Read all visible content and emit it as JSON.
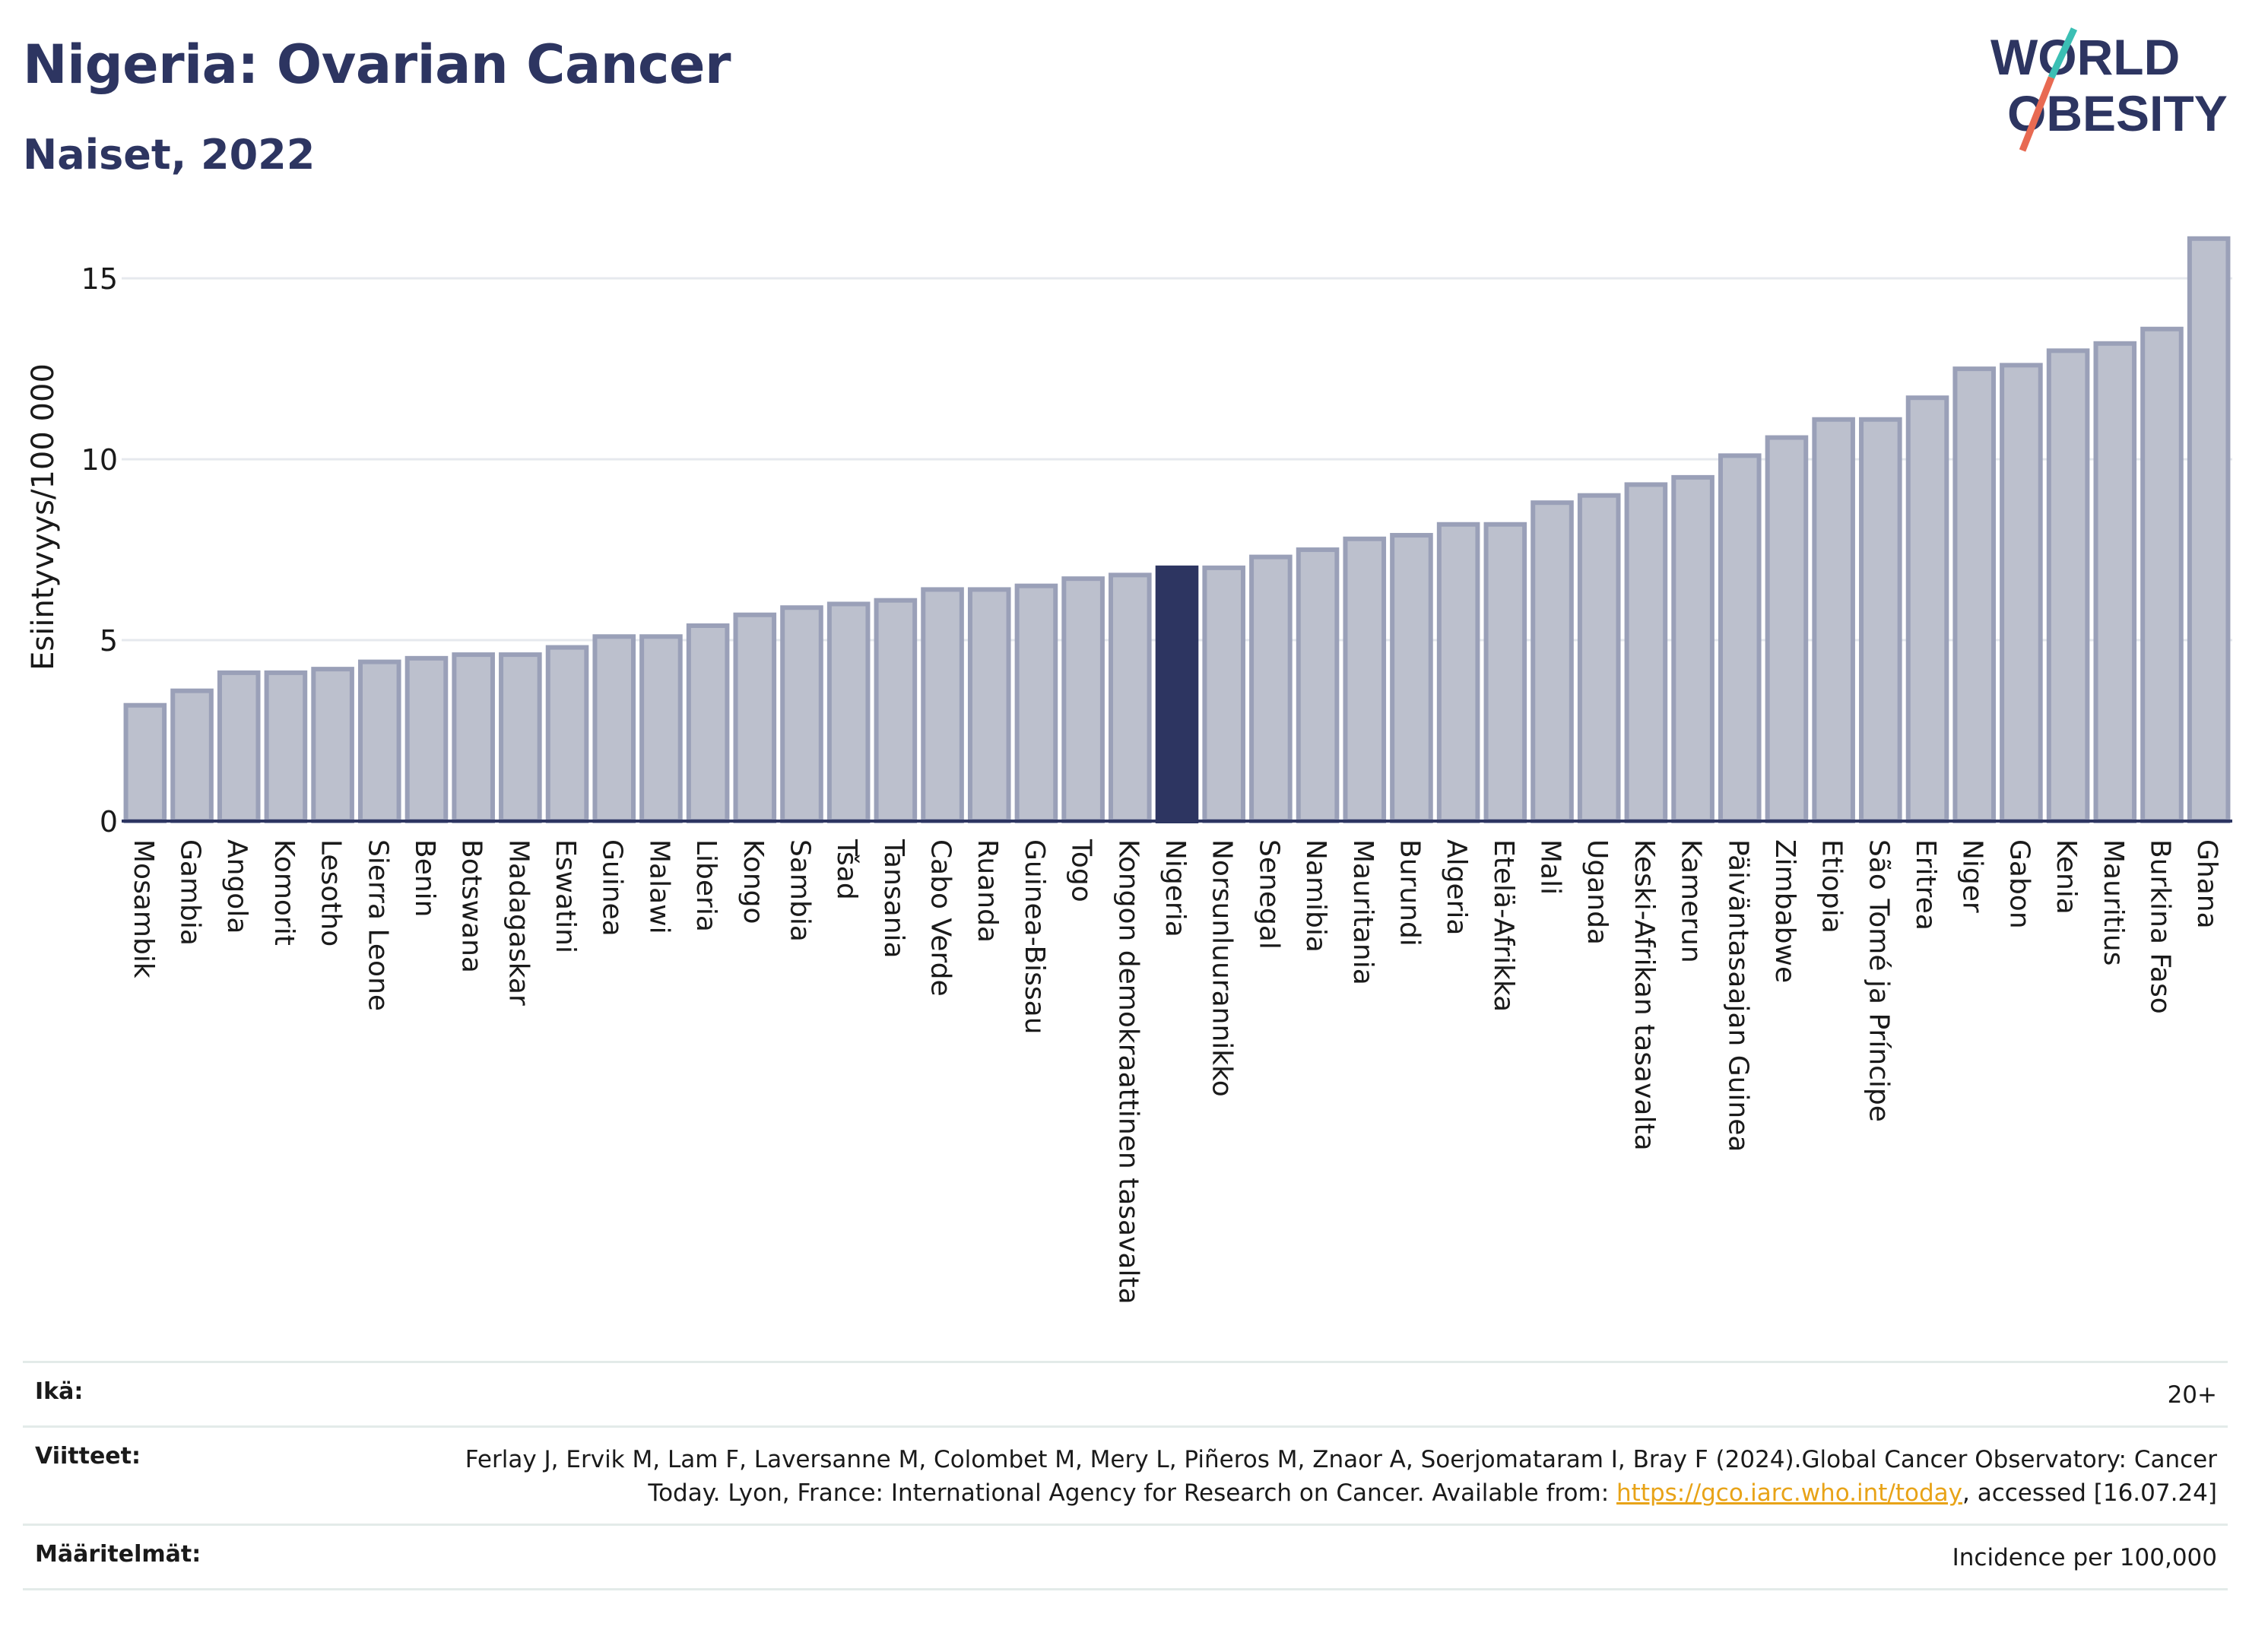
{
  "title": "Nigeria: Ovarian Cancer",
  "subtitle": "Naiset, 2022",
  "logo": {
    "line1": "WORLD",
    "line2": "OBESITY"
  },
  "colors": {
    "highlight": "#2d3561",
    "bar": "#bcc0cd",
    "bar_stroke": "#9aa0b8",
    "text": "#2d3561",
    "link": "#e8a317"
  },
  "chart_data": {
    "type": "bar",
    "ylabel": "Esiintyvyys/100 000",
    "xlabel": "",
    "ylim": [
      0,
      16.6
    ],
    "yticks": [
      0,
      5,
      10,
      15
    ],
    "grid": true,
    "highlight": "Nigeria",
    "categories": [
      "Mosambik",
      "Gambia",
      "Angola",
      "Komorit",
      "Lesotho",
      "Sierra Leone",
      "Benin",
      "Botswana",
      "Madagaskar",
      "Eswatini",
      "Guinea",
      "Malawi",
      "Liberia",
      "Kongo",
      "Sambia",
      "Tšad",
      "Tansania",
      "Cabo Verde",
      "Ruanda",
      "Guinea-Bissau",
      "Togo",
      "Kongon demokraattinen tasavalta",
      "Nigeria",
      "Norsunluurannikko",
      "Senegal",
      "Namibia",
      "Mauritania",
      "Burundi",
      "Algeria",
      "Etelä-Afrikka",
      "Mali",
      "Uganda",
      "Keski-Afrikan tasavalta",
      "Kamerun",
      "Päiväntasaajan Guinea",
      "Zimbabwe",
      "Etiopia",
      "São Tomé ja Príncipe",
      "Eritrea",
      "Niger",
      "Gabon",
      "Kenia",
      "Mauritius",
      "Burkina Faso",
      "Ghana"
    ],
    "values": [
      3.2,
      3.6,
      4.1,
      4.1,
      4.2,
      4.4,
      4.5,
      4.6,
      4.6,
      4.8,
      5.1,
      5.1,
      5.4,
      5.7,
      5.9,
      6.0,
      6.1,
      6.4,
      6.4,
      6.5,
      6.7,
      6.8,
      7.0,
      7.0,
      7.3,
      7.5,
      7.8,
      7.9,
      8.2,
      8.2,
      8.8,
      9.0,
      9.3,
      9.5,
      10.1,
      10.6,
      11.1,
      11.1,
      11.7,
      12.5,
      12.6,
      13.0,
      13.2,
      13.6,
      16.1
    ]
  },
  "footer": {
    "age_label": "Ikä:",
    "age_value": "20+",
    "refs_label": "Viitteet:",
    "refs_text_1": "Ferlay J, Ervik M, Lam F, Laversanne M, Colombet M, Mery L, Piñeros M, Znaor A, Soerjomataram I, Bray F (2024).Global Cancer Observatory: Cancer Today. Lyon, France: International Agency for Research on Cancer. Available from: ",
    "refs_link": "https://gco.iarc.who.int/today",
    "refs_text_2": ", accessed [16.07.24]",
    "defs_label": "Määritelmät:",
    "defs_value": "Incidence per 100,000"
  }
}
